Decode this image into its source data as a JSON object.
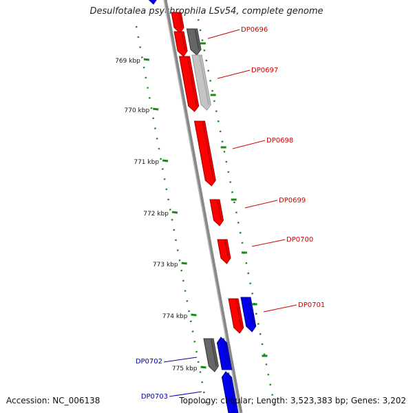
{
  "title": "Desulfotalea psychrophila LSv54, complete genome",
  "footer": {
    "accession": "Accession: NC_006138",
    "summary": "Topology: circular; Length: 3,523,383 bp; Genes: 3,202"
  },
  "colors": {
    "forward_gene": "#ff0000",
    "reverse_gene": "#0000ee",
    "other_gene": "#666666",
    "tick": "#1a8a1a",
    "label_red": "#cc0000",
    "label_blue": "#0000aa",
    "backbone": "#888888"
  },
  "kbp_ticks": [
    "769 kbp",
    "770 kbp",
    "771 kbp",
    "772 kbp",
    "773 kbp",
    "774 kbp",
    "775 kbp"
  ],
  "gene_labels": [
    {
      "id": "DP0696",
      "strand": "forward"
    },
    {
      "id": "DP0697",
      "strand": "forward"
    },
    {
      "id": "DP0698",
      "strand": "forward"
    },
    {
      "id": "DP0699",
      "strand": "forward"
    },
    {
      "id": "DP0700",
      "strand": "forward"
    },
    {
      "id": "DP0701",
      "strand": "forward"
    },
    {
      "id": "DP0702",
      "strand": "reverse"
    },
    {
      "id": "DP0703",
      "strand": "reverse"
    }
  ]
}
